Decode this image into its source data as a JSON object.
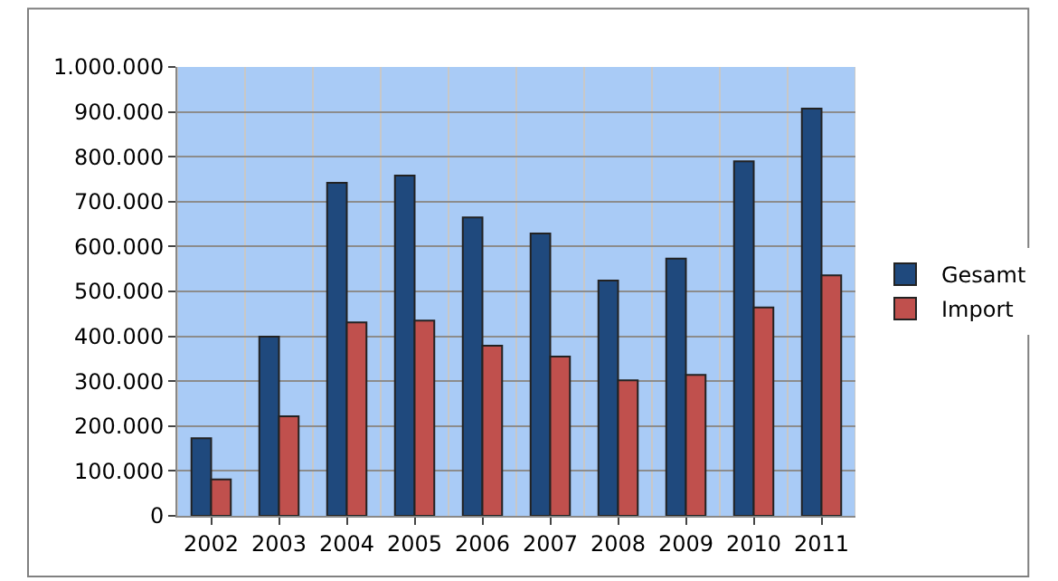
{
  "chart_data": {
    "type": "bar",
    "categories": [
      "2002",
      "2003",
      "2004",
      "2005",
      "2006",
      "2007",
      "2008",
      "2009",
      "2010",
      "2011"
    ],
    "series": [
      {
        "name": "Gesamt",
        "color": "#1f497d",
        "values": [
          173000,
          399000,
          742000,
          758000,
          665000,
          629000,
          524000,
          573000,
          790000,
          907000
        ]
      },
      {
        "name": "Import",
        "color": "#c0504d",
        "values": [
          81000,
          222000,
          431000,
          435000,
          379000,
          355000,
          302000,
          314000,
          464000,
          536000
        ]
      }
    ],
    "ylim": [
      0,
      1000000
    ],
    "yticks": [
      0,
      {
        "value": 100000,
        "label": "100.000"
      },
      {
        "value": 200000,
        "label": "200.000"
      },
      {
        "value": 300000,
        "label": "300.000"
      },
      {
        "value": 400000,
        "label": "400.000"
      },
      {
        "value": 500000,
        "label": "500.000"
      },
      {
        "value": 600000,
        "label": "600.000"
      },
      {
        "value": 700000,
        "label": "700.000"
      },
      {
        "value": 800000,
        "label": "800.000"
      },
      {
        "value": 900000,
        "label": "900.000"
      },
      {
        "value": 1000000,
        "label": "1.000.000"
      }
    ],
    "grid": true,
    "legend": "right"
  }
}
